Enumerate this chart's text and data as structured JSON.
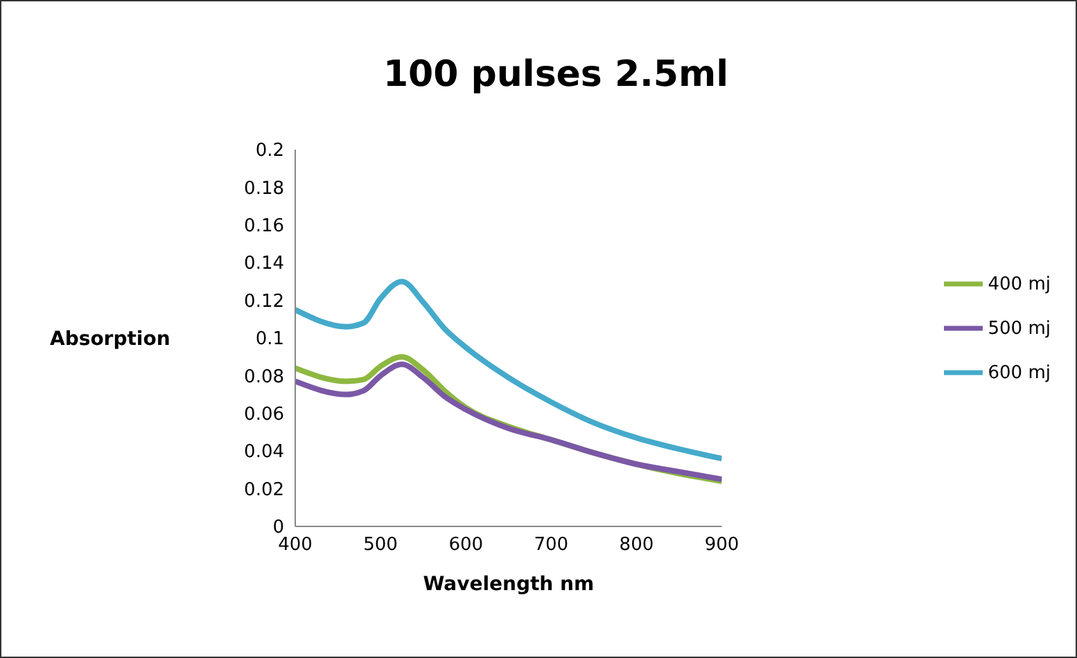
{
  "chart_data": {
    "type": "line",
    "title": "100 pulses 2.5ml",
    "xlabel": "Wavelength nm",
    "ylabel": "Absorption",
    "x": [
      400,
      460,
      480,
      500,
      525,
      550,
      575,
      600,
      650,
      700,
      750,
      800,
      850,
      900
    ],
    "series": [
      {
        "name": "400 mj",
        "color": "#8db840",
        "values": [
          0.084,
          0.077,
          0.078,
          0.085,
          0.09,
          0.083,
          0.072,
          0.063,
          0.053,
          0.046,
          0.039,
          0.033,
          0.028,
          0.024
        ]
      },
      {
        "name": "500 mj",
        "color": "#7b58a6",
        "values": [
          0.077,
          0.07,
          0.072,
          0.08,
          0.086,
          0.079,
          0.069,
          0.062,
          0.052,
          0.046,
          0.039,
          0.033,
          0.029,
          0.025
        ]
      },
      {
        "name": "600 mj",
        "color": "#45aacb",
        "values": [
          0.115,
          0.106,
          0.108,
          0.121,
          0.13,
          0.119,
          0.105,
          0.095,
          0.079,
          0.066,
          0.055,
          0.047,
          0.041,
          0.036
        ]
      }
    ],
    "xlim": [
      400,
      900
    ],
    "xticks": [
      400,
      500,
      600,
      700,
      800,
      900
    ],
    "ylim": [
      0,
      0.2
    ],
    "yticks": [
      0,
      0.02,
      0.04,
      0.06,
      0.08,
      0.1,
      0.12,
      0.14,
      0.16,
      0.18,
      0.2
    ],
    "grid": false,
    "legend": "right",
    "marker": "none",
    "line_style": "solid"
  }
}
